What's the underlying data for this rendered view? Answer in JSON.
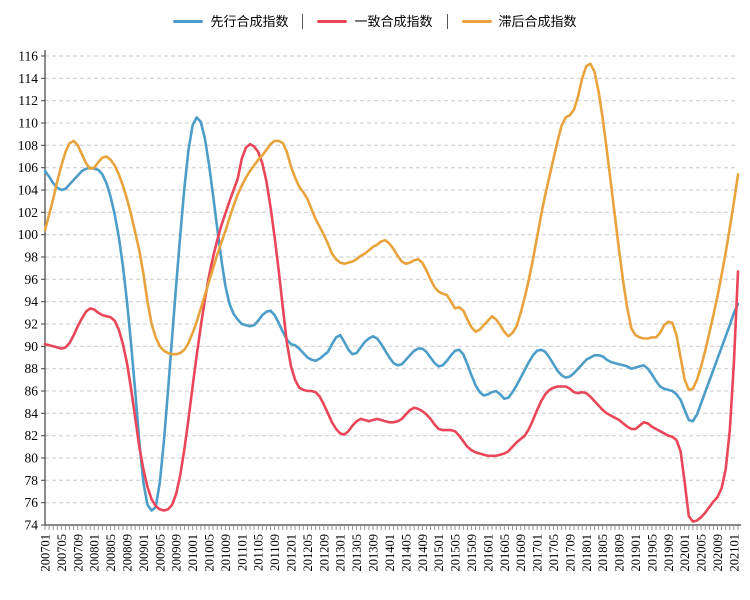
{
  "chart_data": {
    "type": "line",
    "title": "",
    "xlabel": "",
    "ylabel": "",
    "ylim": [
      74,
      116
    ],
    "y_tick_step": 2,
    "grid": true,
    "legend_position": "top",
    "legend_separator": "|",
    "x_tick_every": 4,
    "x_tick_labels": [
      "200701",
      "200705",
      "200709",
      "200801",
      "200805",
      "200809",
      "200901",
      "200905",
      "200909",
      "201001",
      "201005",
      "201009",
      "201101",
      "201105",
      "201109",
      "201201",
      "201205",
      "201209",
      "201301",
      "201305",
      "201309",
      "201401",
      "201405",
      "201409",
      "201501",
      "201505",
      "201509",
      "201601",
      "201605",
      "201609",
      "201701",
      "201705",
      "201709",
      "201801",
      "201805",
      "201809",
      "201901",
      "201905",
      "201909",
      "202001",
      "202005",
      "202009",
      "202101"
    ],
    "series": [
      {
        "name": "先行合成指数",
        "color": "#4d9dc9",
        "values": [
          105.7,
          105.2,
          104.6,
          104.2,
          104.0,
          104.1,
          104.5,
          104.9,
          105.3,
          105.7,
          105.9,
          106.0,
          105.9,
          105.8,
          105.4,
          104.6,
          103.4,
          101.8,
          99.8,
          97.2,
          94.0,
          90.2,
          86.0,
          81.5,
          77.8,
          75.8,
          75.3,
          75.6,
          77.8,
          81.5,
          86.0,
          90.8,
          95.5,
          100.0,
          104.2,
          107.6,
          109.8,
          110.5,
          110.1,
          108.6,
          106.3,
          103.5,
          100.6,
          97.8,
          95.4,
          93.8,
          92.9,
          92.4,
          92.0,
          91.9,
          91.8,
          91.9,
          92.3,
          92.8,
          93.1,
          93.2,
          92.8,
          92.1,
          91.3,
          90.6,
          90.2,
          90.1,
          89.8,
          89.4,
          89.0,
          88.8,
          88.7,
          88.9,
          89.2,
          89.5,
          90.2,
          90.8,
          91.0,
          90.4,
          89.7,
          89.3,
          89.4,
          89.9,
          90.4,
          90.7,
          90.9,
          90.7,
          90.2,
          89.6,
          89.0,
          88.5,
          88.3,
          88.4,
          88.8,
          89.2,
          89.6,
          89.8,
          89.8,
          89.5,
          89.0,
          88.5,
          88.2,
          88.3,
          88.7,
          89.2,
          89.6,
          89.7,
          89.3,
          88.4,
          87.4,
          86.5,
          85.9,
          85.6,
          85.7,
          85.9,
          86.0,
          85.7,
          85.3,
          85.4,
          85.9,
          86.5,
          87.2,
          87.9,
          88.6,
          89.2,
          89.6,
          89.7,
          89.5,
          89.0,
          88.4,
          87.8,
          87.4,
          87.2,
          87.3,
          87.6,
          88.0,
          88.4,
          88.8,
          89.0,
          89.2,
          89.2,
          89.1,
          88.8,
          88.6,
          88.5,
          88.4,
          88.3,
          88.2,
          88.0,
          88.1,
          88.2,
          88.3,
          88.0,
          87.5,
          86.9,
          86.4,
          86.2,
          86.1,
          86.0,
          85.7,
          85.2,
          84.3,
          83.4,
          83.3,
          83.9,
          84.9,
          85.9,
          86.9,
          87.9,
          88.9,
          89.9,
          90.9,
          91.9,
          93.0,
          93.8
        ]
      },
      {
        "name": "一致合成指数",
        "color": "#e9465a",
        "values": [
          90.2,
          90.1,
          90.0,
          89.9,
          89.8,
          89.9,
          90.3,
          91.0,
          91.8,
          92.5,
          93.1,
          93.4,
          93.3,
          93.0,
          92.8,
          92.7,
          92.6,
          92.3,
          91.5,
          90.2,
          88.5,
          86.2,
          83.6,
          81.0,
          79.0,
          77.4,
          76.3,
          75.7,
          75.4,
          75.3,
          75.4,
          75.8,
          76.8,
          78.5,
          80.8,
          83.5,
          86.4,
          89.2,
          91.8,
          94.2,
          96.3,
          98.0,
          99.5,
          100.8,
          101.9,
          103.0,
          104.0,
          105.0,
          106.8,
          107.8,
          108.1,
          107.9,
          107.4,
          106.4,
          104.8,
          102.5,
          99.8,
          96.8,
          93.5,
          90.3,
          88.2,
          87.0,
          86.3,
          86.1,
          86.0,
          86.0,
          85.9,
          85.5,
          84.8,
          84.0,
          83.2,
          82.6,
          82.2,
          82.1,
          82.4,
          82.9,
          83.3,
          83.5,
          83.4,
          83.3,
          83.4,
          83.5,
          83.4,
          83.3,
          83.2,
          83.2,
          83.3,
          83.5,
          83.9,
          84.3,
          84.5,
          84.4,
          84.2,
          83.9,
          83.5,
          83.0,
          82.6,
          82.5,
          82.5,
          82.5,
          82.4,
          82.0,
          81.5,
          81.0,
          80.7,
          80.5,
          80.4,
          80.3,
          80.2,
          80.2,
          80.2,
          80.3,
          80.4,
          80.6,
          81.0,
          81.4,
          81.7,
          82.0,
          82.6,
          83.4,
          84.3,
          85.1,
          85.7,
          86.1,
          86.3,
          86.4,
          86.4,
          86.4,
          86.2,
          85.9,
          85.8,
          85.9,
          85.8,
          85.5,
          85.1,
          84.7,
          84.3,
          84.0,
          83.8,
          83.6,
          83.4,
          83.1,
          82.8,
          82.6,
          82.6,
          82.9,
          83.2,
          83.1,
          82.8,
          82.6,
          82.4,
          82.2,
          82.0,
          81.9,
          81.6,
          80.6,
          77.8,
          74.8,
          74.3,
          74.4,
          74.7,
          75.1,
          75.6,
          76.1,
          76.5,
          77.3,
          79.0,
          82.5,
          88.5,
          96.7
        ]
      },
      {
        "name": "滞后合成指数",
        "color": "#e8a33d",
        "values": [
          100.4,
          101.8,
          103.2,
          104.8,
          106.2,
          107.4,
          108.2,
          108.4,
          108.0,
          107.2,
          106.4,
          105.9,
          106.0,
          106.5,
          106.9,
          107.0,
          106.7,
          106.2,
          105.4,
          104.4,
          103.2,
          101.8,
          100.2,
          98.6,
          96.5,
          94.0,
          92.0,
          90.8,
          90.0,
          89.6,
          89.4,
          89.3,
          89.3,
          89.4,
          89.7,
          90.3,
          91.2,
          92.2,
          93.4,
          94.6,
          95.8,
          97.0,
          98.2,
          99.3,
          100.3,
          101.5,
          102.6,
          103.6,
          104.4,
          105.1,
          105.7,
          106.2,
          106.7,
          107.1,
          107.6,
          108.1,
          108.4,
          108.4,
          108.2,
          107.4,
          106.1,
          105.1,
          104.3,
          103.8,
          103.2,
          102.3,
          101.4,
          100.7,
          100.0,
          99.2,
          98.3,
          97.8,
          97.5,
          97.4,
          97.5,
          97.6,
          97.8,
          98.1,
          98.3,
          98.6,
          98.9,
          99.1,
          99.4,
          99.5,
          99.2,
          98.7,
          98.1,
          97.6,
          97.4,
          97.5,
          97.7,
          97.8,
          97.5,
          96.8,
          96.0,
          95.3,
          94.9,
          94.7,
          94.6,
          94.0,
          93.4,
          93.5,
          93.2,
          92.4,
          91.7,
          91.3,
          91.5,
          91.9,
          92.3,
          92.7,
          92.4,
          91.9,
          91.3,
          90.9,
          91.2,
          91.8,
          93.0,
          94.4,
          96.0,
          97.8,
          99.8,
          101.8,
          103.6,
          105.2,
          106.8,
          108.4,
          109.8,
          110.5,
          110.7,
          111.2,
          112.4,
          114.0,
          115.1,
          115.3,
          114.6,
          112.8,
          110.4,
          107.6,
          104.6,
          101.6,
          98.6,
          95.8,
          93.4,
          91.6,
          91.0,
          90.8,
          90.7,
          90.7,
          90.8,
          90.8,
          91.2,
          91.9,
          92.2,
          92.1,
          91.0,
          89.0,
          87.0,
          86.1,
          86.2,
          87.0,
          88.2,
          89.6,
          91.2,
          92.8,
          94.5,
          96.4,
          98.4,
          100.6,
          102.9,
          105.4
        ]
      }
    ],
    "colors": {
      "axis": "#404040",
      "grid": "#c9c9c9",
      "tick": "#8a8a8a",
      "label": "#000000"
    }
  }
}
